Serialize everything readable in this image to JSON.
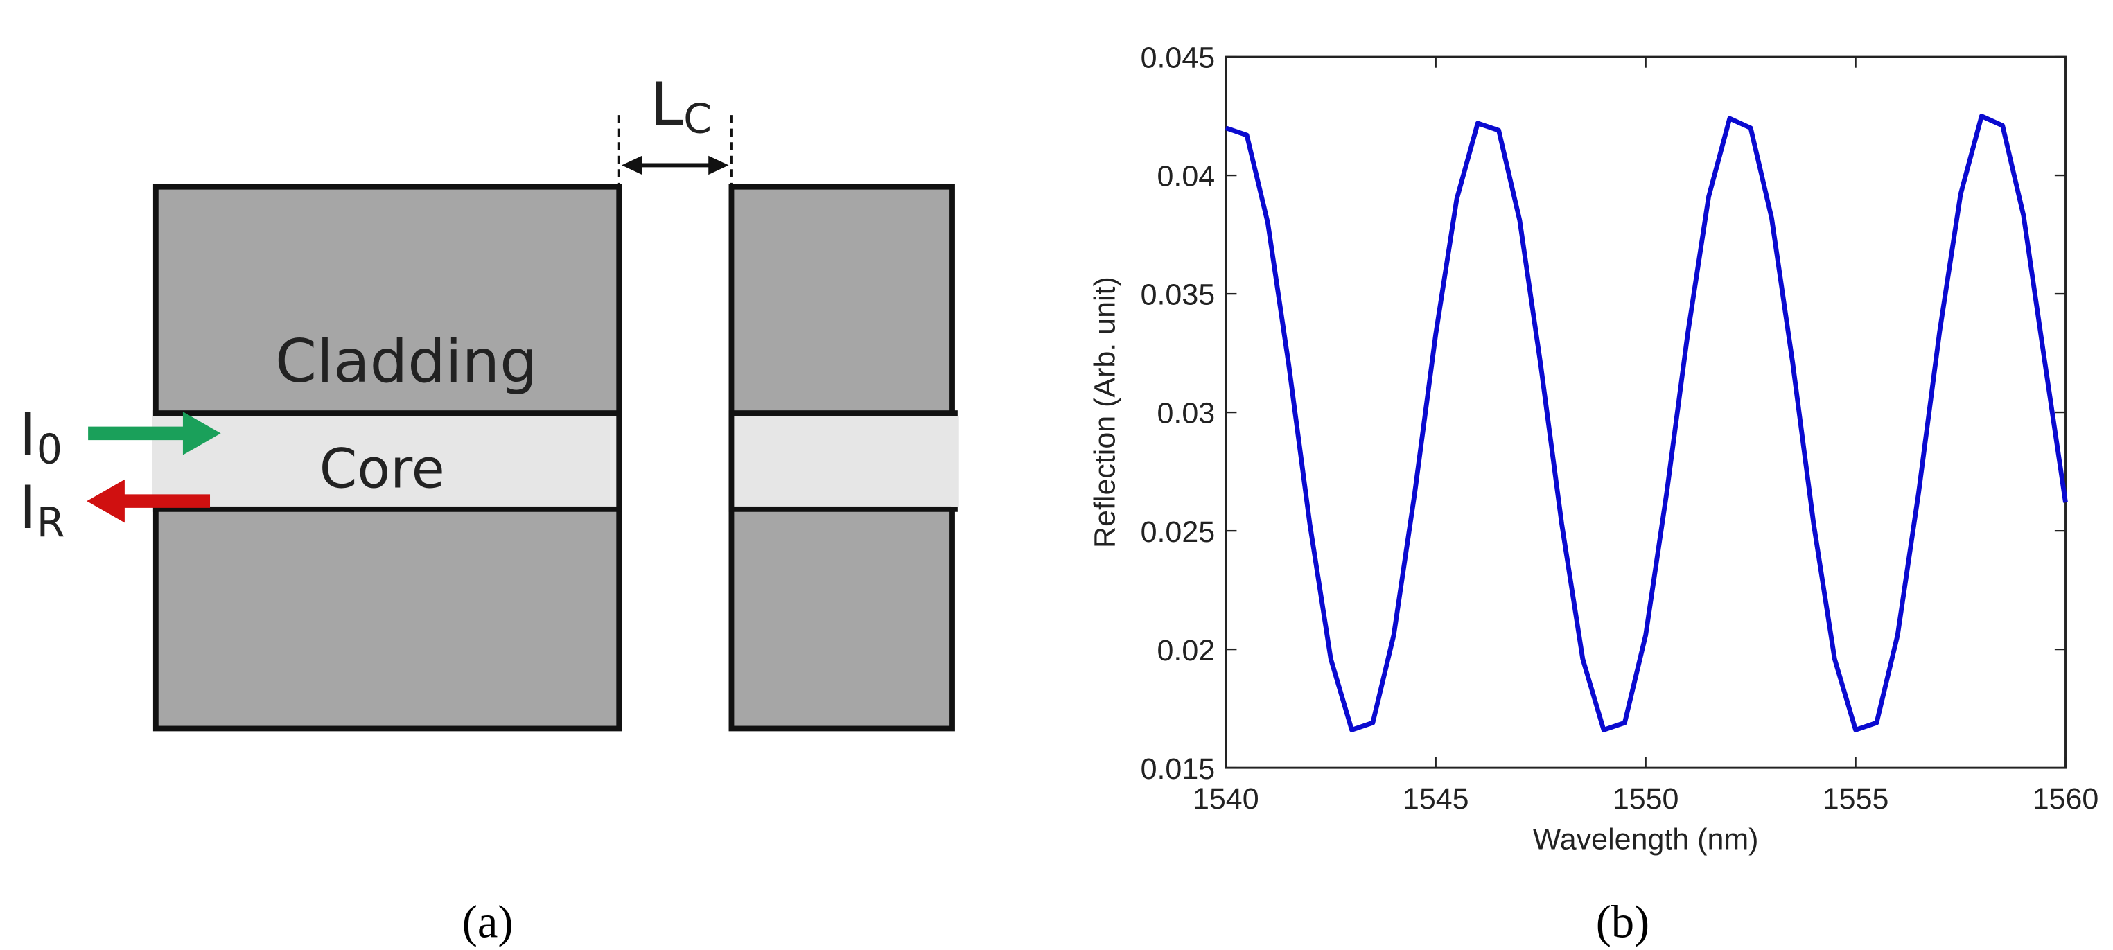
{
  "diagram": {
    "lc_label": {
      "text": "L",
      "subscript": "C"
    },
    "cladding_label": "Cladding",
    "core_label": "Core",
    "i0_label": {
      "text": "I",
      "subscript": "0"
    },
    "ir_label": {
      "text": "I",
      "subscript": "R"
    }
  },
  "captions": [
    "(a)",
    "(b)"
  ],
  "chart_data": {
    "type": "line",
    "x_label": "Wavelength (nm)",
    "y_label": "Reflection (Arb. unit)",
    "x": [
      1540,
      1540.5,
      1541,
      1541.5,
      1542,
      1542.5,
      1543,
      1543.5,
      1544,
      1544.5,
      1545,
      1545.5,
      1546,
      1546.5,
      1547,
      1547.5,
      1548,
      1548.5,
      1549,
      1549.5,
      1550,
      1550.5,
      1551,
      1551.5,
      1552,
      1552.5,
      1553,
      1553.5,
      1554,
      1554.5,
      1555,
      1555.5,
      1556,
      1556.5,
      1557,
      1557.5,
      1558,
      1558.5,
      1559,
      1559.5,
      1560
    ],
    "series": [
      {
        "color": "#0a0ad0",
        "values": [
          0.042,
          0.0417,
          0.038,
          0.032,
          0.0253,
          0.0196,
          0.0166,
          0.0169,
          0.0206,
          0.0266,
          0.0333,
          0.039,
          0.0422,
          0.0419,
          0.0381,
          0.032,
          0.0253,
          0.0196,
          0.0166,
          0.0169,
          0.0206,
          0.0266,
          0.0333,
          0.0391,
          0.0424,
          0.042,
          0.0382,
          0.0321,
          0.0253,
          0.0196,
          0.0166,
          0.0169,
          0.0206,
          0.0266,
          0.0334,
          0.0392,
          0.0425,
          0.0421,
          0.0383,
          0.0322,
          0.0262
        ]
      }
    ],
    "xlim": [
      1540,
      1560
    ],
    "xticks": [
      1540,
      1545,
      1550,
      1555,
      1560
    ],
    "ylim": [
      0.015,
      0.045
    ],
    "yticks": [
      0.015,
      0.02,
      0.025,
      0.03,
      0.035,
      0.04,
      0.045
    ]
  }
}
